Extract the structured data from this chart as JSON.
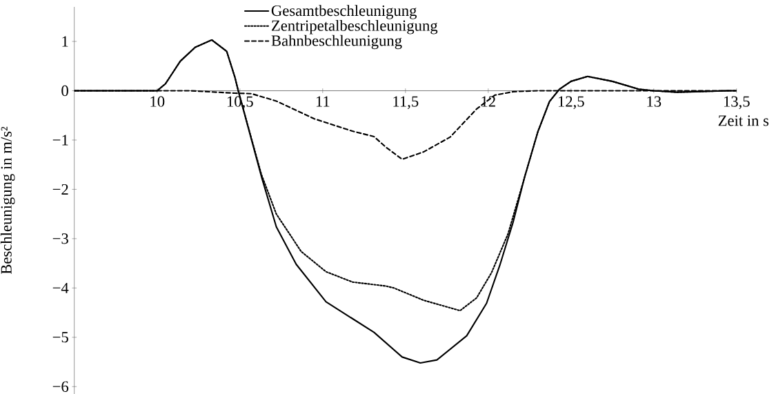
{
  "chart_data": {
    "type": "line",
    "xlabel": "Zeit in s",
    "ylabel": "Beschleunigung in m/s²",
    "xlim": [
      9.5,
      13.5
    ],
    "ylim": [
      -6.15,
      1.7
    ],
    "xticks": [
      10,
      {
        "value": 10.5,
        "label": "10,5"
      },
      11,
      {
        "value": 11.5,
        "label": "11,5"
      },
      12,
      {
        "value": 12.5,
        "label": "12,5"
      },
      13,
      {
        "value": 13.5,
        "label": "13,5"
      }
    ],
    "yticks": [
      {
        "value": -6,
        "label": "−6"
      },
      {
        "value": -5,
        "label": "−5"
      },
      {
        "value": -4,
        "label": "−4"
      },
      {
        "value": -3,
        "label": "−3"
      },
      {
        "value": -2,
        "label": "−2"
      },
      {
        "value": -1,
        "label": "−1"
      },
      0,
      1
    ],
    "legend": "top",
    "grid": false,
    "marker": "none",
    "series": [
      {
        "name": "Gesamtbeschleunigung",
        "color": "#000000",
        "line_style": "solid",
        "x": [
          9.5,
          10.0,
          10.05,
          10.14,
          10.23,
          10.33,
          10.42,
          10.47,
          10.49,
          10.63,
          10.72,
          10.84,
          11.02,
          11.31,
          11.48,
          11.59,
          11.69,
          11.87,
          11.99,
          12.07,
          12.15,
          12.22,
          12.3,
          12.37,
          12.43,
          12.5,
          12.6,
          12.75,
          12.91,
          13.0,
          13.14,
          13.45,
          13.5
        ],
        "values": [
          0,
          0,
          0.14,
          0.6,
          0.88,
          1.03,
          0.8,
          0.27,
          0,
          -1.74,
          -2.76,
          -3.52,
          -4.28,
          -4.9,
          -5.4,
          -5.52,
          -5.46,
          -4.97,
          -4.31,
          -3.54,
          -2.67,
          -1.75,
          -0.83,
          -0.22,
          0.03,
          0.19,
          0.29,
          0.19,
          0.03,
          0,
          -0.03,
          0,
          0
        ]
      },
      {
        "name": "Zentripetalbeschleunigung",
        "color": "#000000",
        "line_style": "dotted",
        "x": [
          9.5,
          10.0,
          10.05,
          10.14,
          10.23,
          10.33,
          10.42,
          10.47,
          10.49,
          10.63,
          10.72,
          10.87,
          11.02,
          11.18,
          11.38,
          11.43,
          11.61,
          11.83,
          11.93,
          12.02,
          12.12,
          12.22,
          12.3,
          12.37,
          12.43,
          12.5,
          12.6,
          12.75,
          12.91,
          13.0,
          13.14,
          13.45,
          13.5
        ],
        "values": [
          0,
          0,
          0.14,
          0.6,
          0.88,
          1.03,
          0.8,
          0.27,
          0,
          -1.7,
          -2.5,
          -3.26,
          -3.67,
          -3.88,
          -3.96,
          -4.0,
          -4.25,
          -4.46,
          -4.2,
          -3.69,
          -2.9,
          -1.75,
          -0.83,
          -0.22,
          0.03,
          0.19,
          0.29,
          0.19,
          0.03,
          0,
          -0.03,
          0,
          0
        ]
      },
      {
        "name": "Bahnbeschleunigung",
        "color": "#000000",
        "line_style": "dashed",
        "x": [
          9.5,
          10.2,
          10.47,
          10.57,
          10.72,
          10.95,
          11.18,
          11.31,
          11.38,
          11.48,
          11.61,
          11.77,
          11.93,
          12.04,
          12.15,
          12.3,
          13.5
        ],
        "values": [
          0,
          0,
          -0.05,
          -0.06,
          -0.21,
          -0.57,
          -0.82,
          -0.93,
          -1.14,
          -1.39,
          -1.24,
          -0.94,
          -0.37,
          -0.09,
          -0.02,
          0,
          0
        ]
      }
    ]
  }
}
